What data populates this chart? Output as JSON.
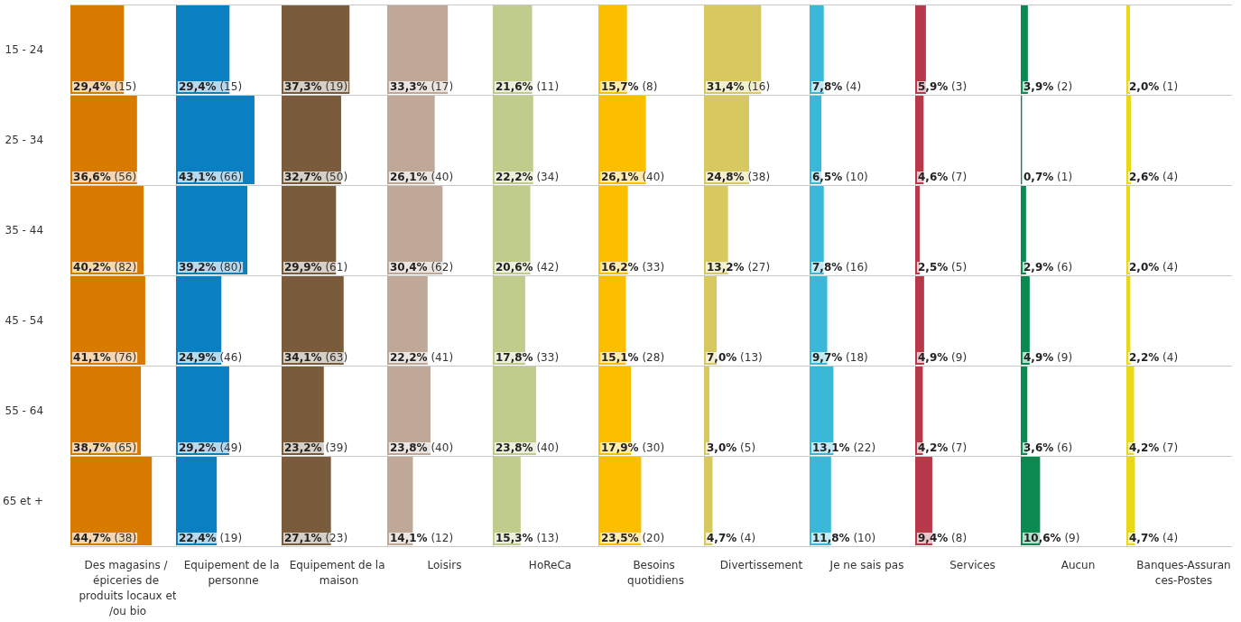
{
  "chart_data": [
    {
      "type": "bar",
      "orientation": "horizontal",
      "xlabel": "Des magasins / épiceries de produits locaux et/ou bio",
      "categories": [
        "15 - 24",
        "25 - 34",
        "35 - 44",
        "45 - 54",
        "55 - 64",
        "65 et +"
      ],
      "values": [
        29.4,
        36.6,
        40.2,
        41.1,
        38.7,
        44.7
      ],
      "value_labels": [
        "29,4% (15)",
        "36,6% (56)",
        "40,2% (82)",
        "41,1% (76)",
        "38,7% (65)",
        "44,7% (38)"
      ],
      "color": "#d97a00",
      "xlim": [
        0,
        58
      ],
      "tick_labels": "y",
      "grid": "y"
    },
    {
      "type": "bar",
      "orientation": "horizontal",
      "xlabel": "Equipement de la personne",
      "categories": [
        null,
        null,
        null,
        null,
        null,
        null
      ],
      "values": [
        29.4,
        43.1,
        39.2,
        24.9,
        29.2,
        22.4
      ],
      "value_labels": [
        "29,4% (15)",
        "43,1% (66)",
        "39,2% (80)",
        "24,9% (46)",
        "29,2% (49)",
        "22,4% (19)"
      ],
      "color": "#0a7fc1",
      "xlim": [
        0,
        58
      ],
      "tick_labels": false,
      "grid": "y"
    },
    {
      "type": "bar",
      "orientation": "horizontal",
      "xlabel": "Equipement de la maison",
      "categories": [
        null,
        null,
        null,
        null,
        null,
        null
      ],
      "values": [
        37.3,
        32.7,
        29.9,
        34.1,
        23.2,
        27.1
      ],
      "value_labels": [
        "37,3% (19)",
        "32,7% (50)",
        "29,9% (61)",
        "34,1% (63)",
        "23,2% (39)",
        "27,1% (23)"
      ],
      "color": "#7a5c3c",
      "xlim": [
        0,
        58
      ],
      "tick_labels": false,
      "grid": "y"
    },
    {
      "type": "bar",
      "orientation": "horizontal",
      "xlabel": "Loisirs",
      "categories": [
        null,
        null,
        null,
        null,
        null,
        null
      ],
      "values": [
        33.3,
        26.1,
        30.4,
        22.2,
        23.8,
        14.1
      ],
      "value_labels": [
        "33,3% (17)",
        "26,1% (40)",
        "30,4% (62)",
        "22,2% (41)",
        "23,8% (40)",
        "14,1% (12)"
      ],
      "color": "#bfa898",
      "xlim": [
        0,
        58
      ],
      "tick_labels": false,
      "grid": "y"
    },
    {
      "type": "bar",
      "orientation": "horizontal",
      "xlabel": "HoReCa",
      "categories": [
        null,
        null,
        null,
        null,
        null,
        null
      ],
      "values": [
        21.6,
        22.2,
        20.6,
        17.8,
        23.8,
        15.3
      ],
      "value_labels": [
        "21,6% (11)",
        "22,2% (34)",
        "20,6% (42)",
        "17,8% (33)",
        "23,8% (40)",
        "15,3% (13)"
      ],
      "color": "#bfcc8c",
      "xlim": [
        0,
        58
      ],
      "tick_labels": false,
      "grid": "y"
    },
    {
      "type": "bar",
      "orientation": "horizontal",
      "xlabel": "Besoins quotidiens",
      "categories": [
        null,
        null,
        null,
        null,
        null,
        null
      ],
      "values": [
        15.7,
        26.1,
        16.2,
        15.1,
        17.9,
        23.5
      ],
      "value_labels": [
        "15,7% (8)",
        "26,1% (40)",
        "16,2% (33)",
        "15,1% (28)",
        "17,9% (30)",
        "23,5% (20)"
      ],
      "color": "#fbbf00",
      "xlim": [
        0,
        58
      ],
      "tick_labels": false,
      "grid": "y"
    },
    {
      "type": "bar",
      "orientation": "horizontal",
      "xlabel": "Divertissement",
      "categories": [
        null,
        null,
        null,
        null,
        null,
        null
      ],
      "values": [
        31.4,
        24.8,
        13.2,
        7.0,
        3.0,
        4.7
      ],
      "value_labels": [
        "31,4% (16)",
        "24,8% (38)",
        "13,2% (27)",
        "7,0% (13)",
        "3,0% (5)",
        "4,7% (4)"
      ],
      "color": "#d8c860",
      "xlim": [
        0,
        58
      ],
      "tick_labels": false,
      "grid": "y"
    },
    {
      "type": "bar",
      "orientation": "horizontal",
      "xlabel": "Je ne sais pas",
      "categories": [
        null,
        null,
        null,
        null,
        null,
        null
      ],
      "values": [
        7.8,
        6.5,
        7.8,
        9.7,
        13.1,
        11.8
      ],
      "value_labels": [
        "7,8% (4)",
        "6,5% (10)",
        "7,8% (16)",
        "9,7% (18)",
        "13,1% (22)",
        "11,8% (10)"
      ],
      "color": "#3ab8d8",
      "xlim": [
        0,
        58
      ],
      "tick_labels": false,
      "grid": "y"
    },
    {
      "type": "bar",
      "orientation": "horizontal",
      "xlabel": "Services",
      "categories": [
        null,
        null,
        null,
        null,
        null,
        null
      ],
      "values": [
        5.9,
        4.6,
        2.5,
        4.9,
        4.2,
        9.4
      ],
      "value_labels": [
        "5,9% (3)",
        "4,6% (7)",
        "2,5% (5)",
        "4,9% (9)",
        "4,2% (7)",
        "9,4% (8)"
      ],
      "color": "#b83a4a",
      "xlim": [
        0,
        58
      ],
      "tick_labels": false,
      "grid": "y"
    },
    {
      "type": "bar",
      "orientation": "horizontal",
      "xlabel": "Aucun",
      "categories": [
        null,
        null,
        null,
        null,
        null,
        null
      ],
      "values": [
        3.9,
        0.7,
        2.9,
        4.9,
        3.6,
        10.6
      ],
      "value_labels": [
        "3,9% (2)",
        "0,7% (1)",
        "2,9% (6)",
        "4,9% (9)",
        "3,6% (6)",
        "10,6% (9)"
      ],
      "color": "#0a8a50",
      "xlim": [
        0,
        58
      ],
      "tick_labels": false,
      "grid": "y"
    },
    {
      "type": "bar",
      "orientation": "horizontal",
      "xlabel": "Banques-Assurances-Postes",
      "categories": [
        null,
        null,
        null,
        null,
        null,
        null
      ],
      "values": [
        2.0,
        2.6,
        2.0,
        2.2,
        4.2,
        4.7
      ],
      "value_labels": [
        "2,0% (1)",
        "2,6% (4)",
        "2,0% (4)",
        "2,2% (4)",
        "4,2% (7)",
        "4,7% (4)"
      ],
      "color": "#e8d818",
      "xlim": [
        0,
        58
      ],
      "tick_labels": false,
      "grid": "y"
    }
  ]
}
